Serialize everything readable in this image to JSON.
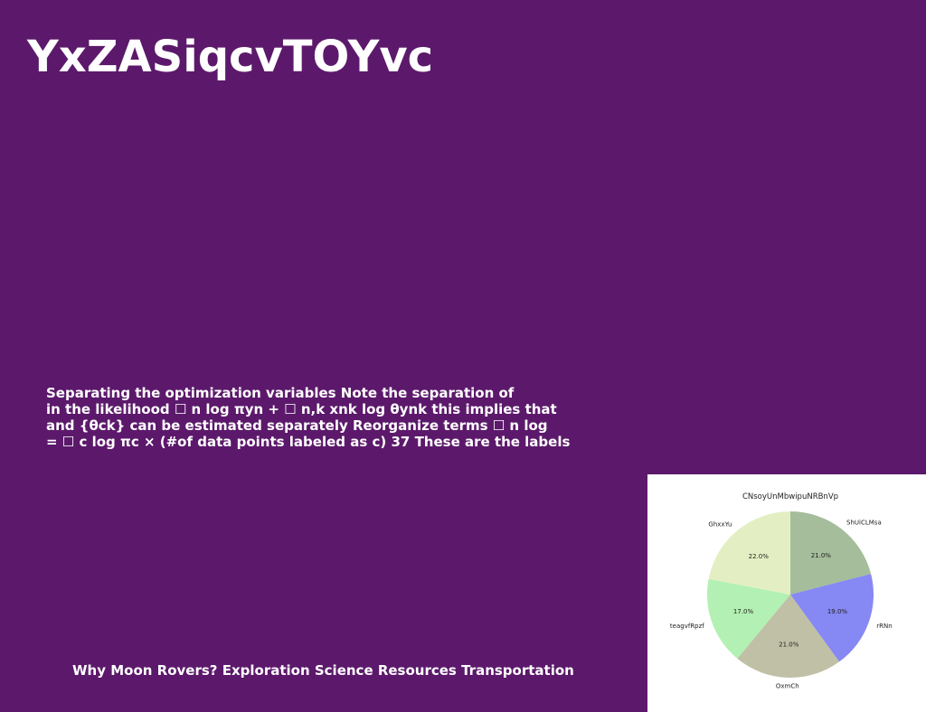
{
  "slide": {
    "title": "YxZASiqcvTOYvc",
    "body_lines": [
      "Separating the optimization variables Note the separation of",
      "in the likelihood ☐ n log πyn + ☐ n,k xnk log θynk this implies that",
      "and {θck} can be estimated separately Reorganize terms ☐ n log",
      "= ☐ c log πc × (#of data points labeled as c) 37 These are the labels"
    ],
    "footer": "Why Moon Rovers? Exploration Science Resources Transportation",
    "background_color": "#5c196b"
  },
  "chart_data": {
    "type": "pie",
    "title": "CNsoyUnMbwipuNRBnVp",
    "slices": [
      {
        "label": "ShUiCLMsa",
        "value": 21.0,
        "display": "21.0%",
        "color": "#a5bd9a"
      },
      {
        "label": "rRNn",
        "value": 19.0,
        "display": "19.0%",
        "color": "#8688f4"
      },
      {
        "label": "OxmCh",
        "value": 21.0,
        "display": "21.0%",
        "color": "#c0c0a6"
      },
      {
        "label": "teagvfRpzf",
        "value": 17.0,
        "display": "17.0%",
        "color": "#b3f0b3"
      },
      {
        "label": "GhxxYu",
        "value": 22.0,
        "display": "22.0%",
        "color": "#e3efc2"
      }
    ],
    "start_angle": "top",
    "direction": "clockwise"
  }
}
